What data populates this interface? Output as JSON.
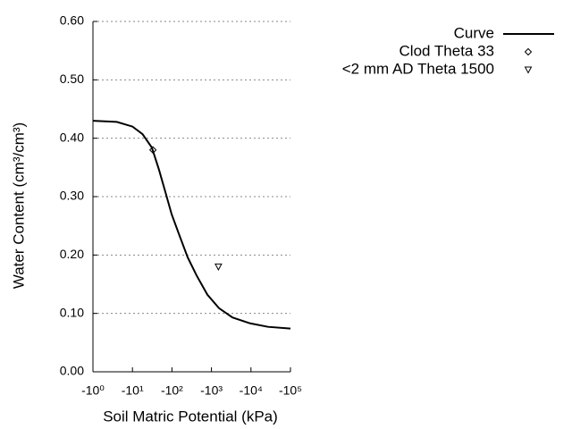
{
  "chart_data": {
    "type": "line",
    "xlabel": "Soil Matric Potential (kPa)",
    "ylabel": "Water Content (cm³/cm³)",
    "xscale": "log",
    "xlim": [
      1,
      100000
    ],
    "xticks": [
      {
        "value": 1,
        "label": "-10⁰"
      },
      {
        "value": 10,
        "label": "-10¹"
      },
      {
        "value": 100,
        "label": "-10²"
      },
      {
        "value": 1000,
        "label": "-10³"
      },
      {
        "value": 10000,
        "label": "-10⁴"
      },
      {
        "value": 100000,
        "label": "-10⁵"
      }
    ],
    "ylim": [
      0,
      0.6
    ],
    "yticks": [
      {
        "value": 0,
        "label": "0.00"
      },
      {
        "value": 0.1,
        "label": "0.10"
      },
      {
        "value": 0.2,
        "label": "0.20"
      },
      {
        "value": 0.3,
        "label": "0.30"
      },
      {
        "value": 0.4,
        "label": "0.40"
      },
      {
        "value": 0.5,
        "label": "0.50"
      },
      {
        "value": 0.6,
        "label": "0.60"
      }
    ],
    "grid": true,
    "legend": "top-right",
    "series": [
      {
        "name": "Curve",
        "color": "#000000",
        "marker": "none",
        "x": [
          1,
          4,
          10,
          18,
          31,
          47,
          68,
          98,
          150,
          250,
          420,
          790,
          1550,
          3400,
          9500,
          27000,
          100000
        ],
        "values": [
          0.43,
          0.428,
          0.42,
          0.407,
          0.384,
          0.346,
          0.308,
          0.27,
          0.236,
          0.196,
          0.165,
          0.132,
          0.109,
          0.093,
          0.083,
          0.077,
          0.074
        ]
      },
      {
        "name": "Clod Theta 33",
        "color": "#000000",
        "marker": "diamond",
        "x": [
          33
        ],
        "values": [
          0.38
        ]
      },
      {
        "name": "<2 mm AD Theta 1500",
        "color": "#000000",
        "marker": "triangle-down",
        "x": [
          1500
        ],
        "values": [
          0.18
        ]
      }
    ]
  }
}
